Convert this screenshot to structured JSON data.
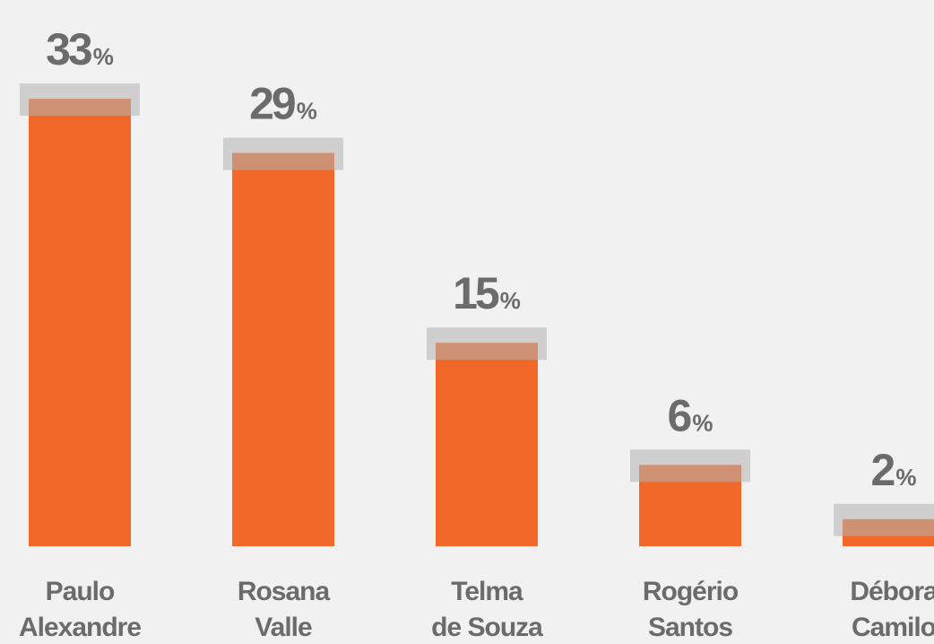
{
  "chart_data": {
    "type": "bar",
    "categories": [
      [
        "Paulo",
        "Alexandre"
      ],
      [
        "Rosana",
        "Valle"
      ],
      [
        "Telma",
        "de Souza"
      ],
      [
        "Rogério",
        "Santos"
      ],
      [
        "Débora",
        "Camilo"
      ]
    ],
    "values": [
      33,
      29,
      15,
      6,
      2
    ],
    "value_labels": [
      "33%",
      "29%",
      "15%",
      "6%",
      "2%"
    ],
    "color": "#f26828"
  }
}
